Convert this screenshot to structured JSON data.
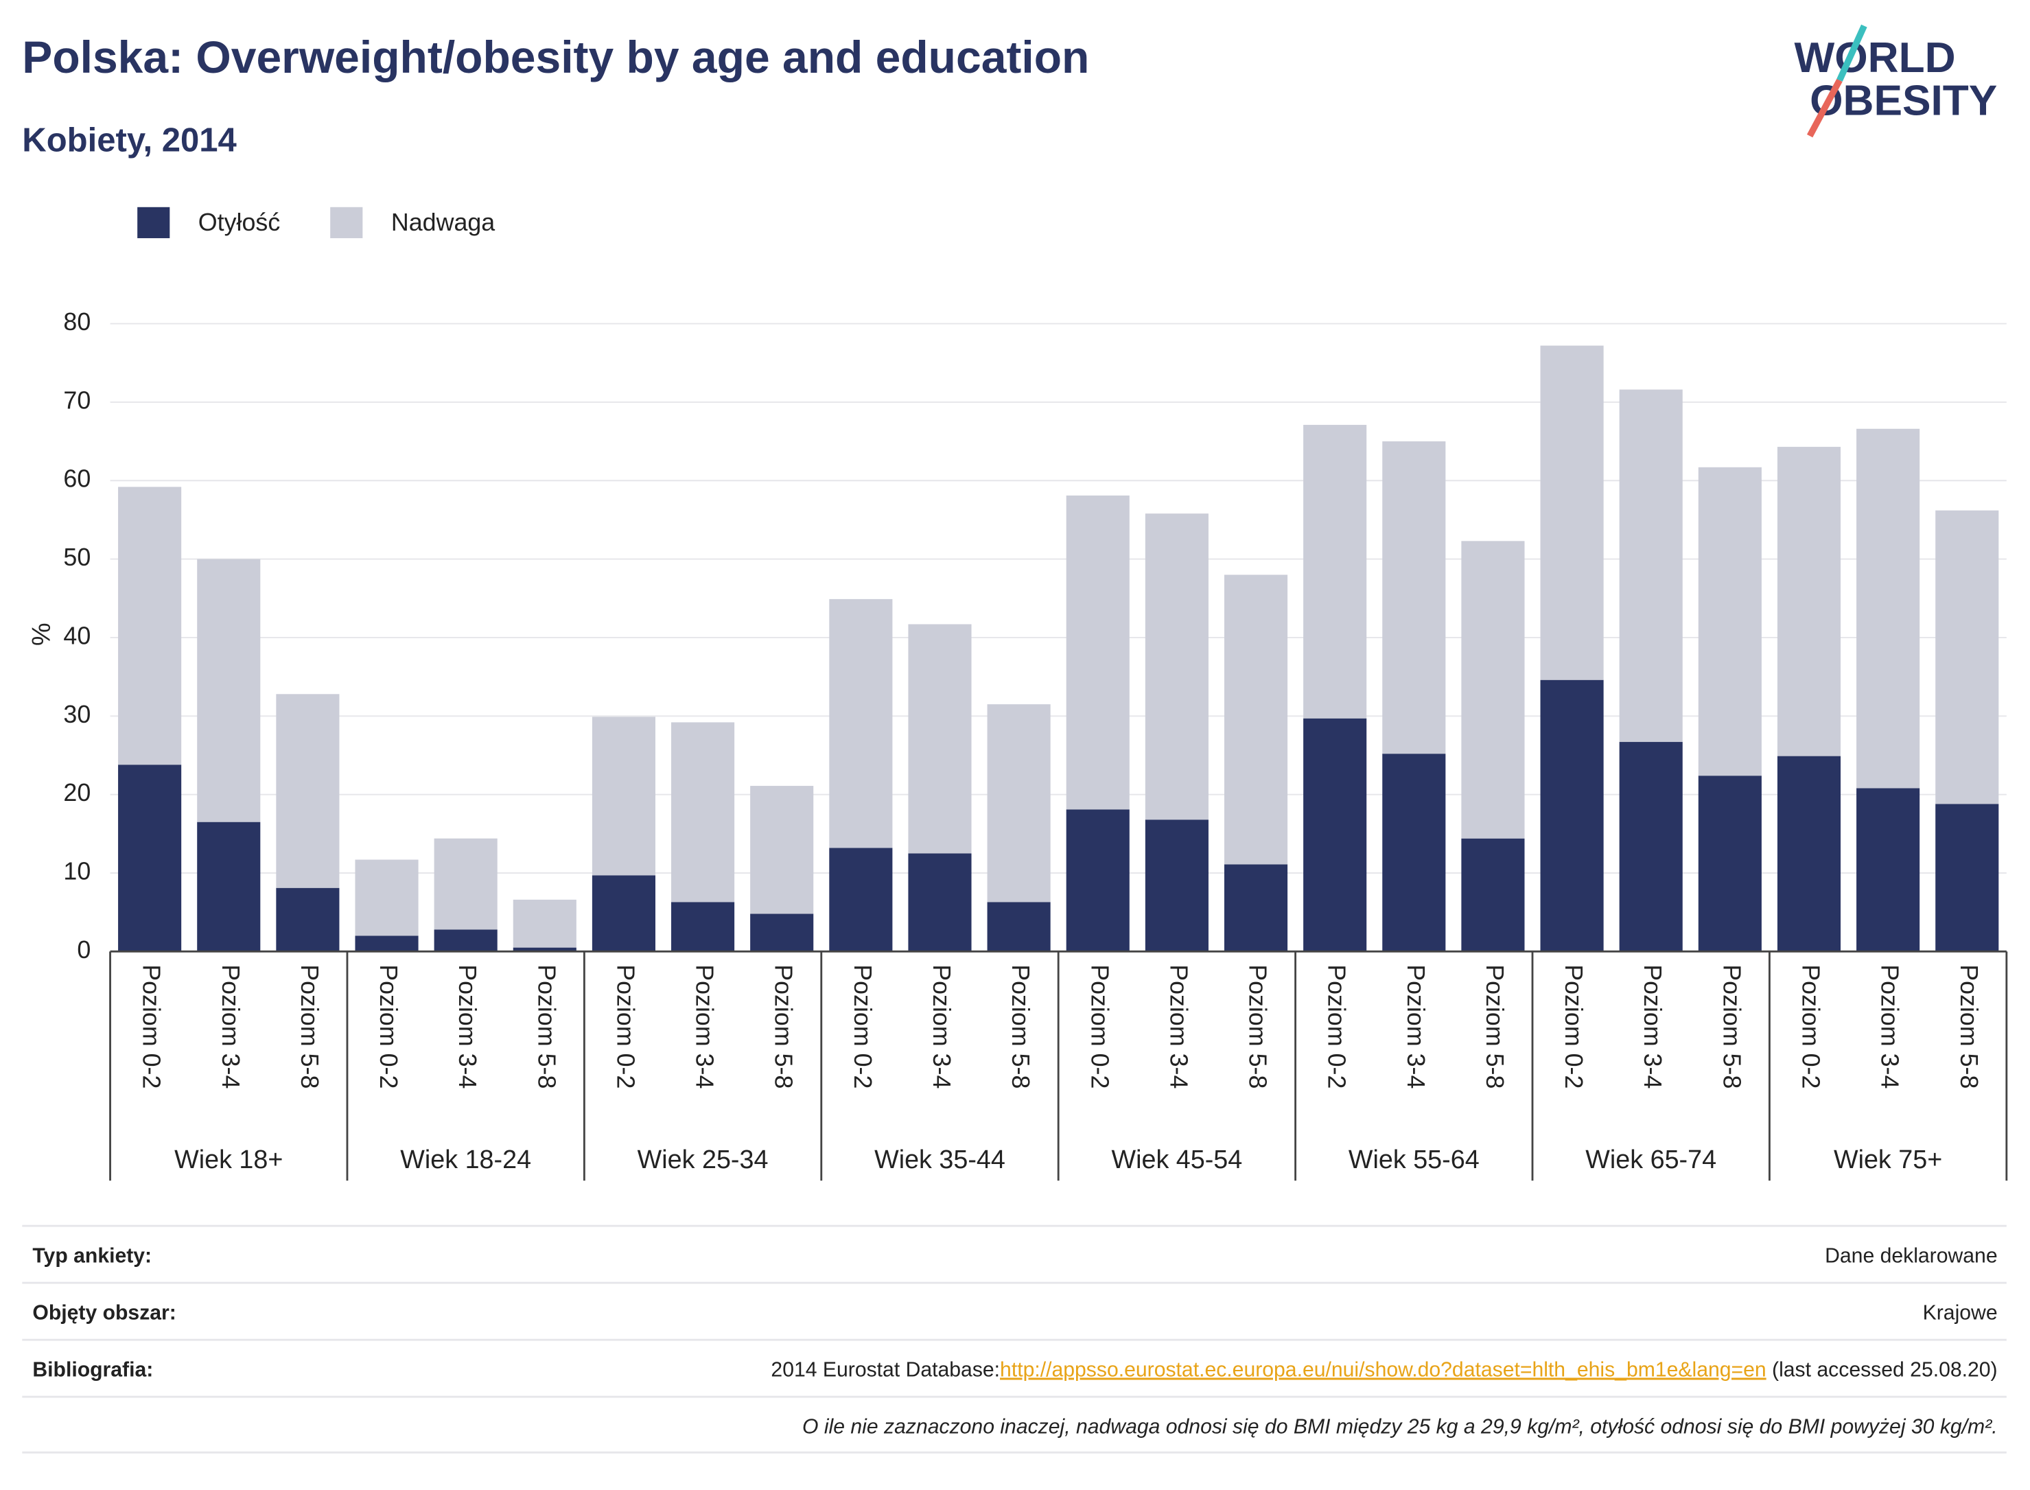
{
  "chart_data": {
    "type": "stacked_bar",
    "title": "Polska: Overweight/obesity by age and education",
    "subtitle": "Kobiety, 2014",
    "y_label": "%",
    "logo": [
      "WORLD",
      "OBESITY"
    ],
    "groups": [
      {
        "label": "Wiek 18+",
        "categories": [
          "Poziom 0-2",
          "Poziom 3-4",
          "Poziom 5-8"
        ]
      },
      {
        "label": "Wiek 18-24",
        "categories": [
          "Poziom 0-2",
          "Poziom 3-4",
          "Poziom 5-8"
        ]
      },
      {
        "label": "Wiek 25-34",
        "categories": [
          "Poziom 0-2",
          "Poziom 3-4",
          "Poziom 5-8"
        ]
      },
      {
        "label": "Wiek 35-44",
        "categories": [
          "Poziom 0-2",
          "Poziom 3-4",
          "Poziom 5-8"
        ]
      },
      {
        "label": "Wiek 45-54",
        "categories": [
          "Poziom 0-2",
          "Poziom 3-4",
          "Poziom 5-8"
        ]
      },
      {
        "label": "Wiek 55-64",
        "categories": [
          "Poziom 0-2",
          "Poziom 3-4",
          "Poziom 5-8"
        ]
      },
      {
        "label": "Wiek 65-74",
        "categories": [
          "Poziom 0-2",
          "Poziom 3-4",
          "Poziom 5-8"
        ]
      },
      {
        "label": "Wiek 75+",
        "categories": [
          "Poziom 0-2",
          "Poziom 3-4",
          "Poziom 5-8"
        ]
      }
    ],
    "series": [
      {
        "name": "Otyłość",
        "color": "#293462",
        "values": [
          23.8,
          16.5,
          8.1,
          2.0,
          2.8,
          0.5,
          9.7,
          6.3,
          4.8,
          13.2,
          12.5,
          6.3,
          18.1,
          16.8,
          11.1,
          29.7,
          25.2,
          14.4,
          34.6,
          26.7,
          22.4,
          24.9,
          20.8,
          18.8
        ]
      },
      {
        "name": "Nadwaga",
        "color": "#cbcdd8",
        "values": [
          35.4,
          33.5,
          24.7,
          9.7,
          11.6,
          6.1,
          20.2,
          22.9,
          16.3,
          31.7,
          29.2,
          25.2,
          40.0,
          39.0,
          36.9,
          37.4,
          39.8,
          37.9,
          42.6,
          44.9,
          39.3,
          39.4,
          45.8,
          37.4
        ]
      }
    ],
    "ylim": [
      0,
      80
    ],
    "yticks": [
      0,
      10,
      20,
      30,
      40,
      50,
      60,
      70,
      80
    ],
    "grid": true
  },
  "footer": {
    "rows": [
      {
        "label": "Typ ankiety:",
        "value": "Dane deklarowane"
      },
      {
        "label": "Objęty obszar:",
        "value": "Krajowe"
      }
    ],
    "bibliography": {
      "label": "Bibliografia:",
      "prefix": "2014 Eurostat Database:",
      "link": "http://appsso.eurostat.ec.europa.eu/nui/show.do?dataset=hlth_ehis_bm1e&lang=en",
      "suffix": " (last accessed 25.08.20)"
    },
    "note": "O ile nie zaznaczono inaczej, nadwaga odnosi się do BMI między 25 kg a 29,9 kg/m², otyłość odnosi się do BMI powyżej 30 kg/m²."
  }
}
